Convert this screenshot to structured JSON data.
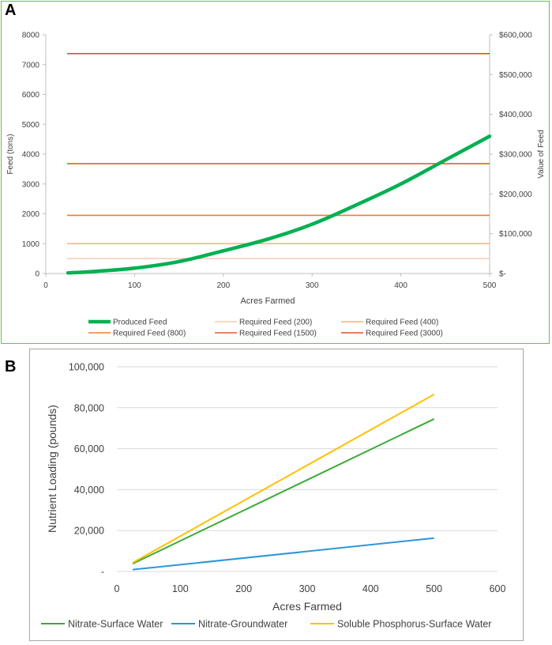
{
  "panels": {
    "a_label": "A",
    "b_label": "B"
  },
  "chart_data": [
    {
      "id": "A",
      "type": "line",
      "xlabel": "Acres Farmed",
      "ylabel": "Feed (tons)",
      "y2label": "Value of Feed",
      "xlim": [
        0,
        500
      ],
      "ylim": [
        0,
        8000
      ],
      "y2lim": [
        0,
        600000
      ],
      "x_ticks": [
        "0",
        "100",
        "200",
        "300",
        "400",
        "500"
      ],
      "y_ticks": [
        "0",
        "1000",
        "2000",
        "3000",
        "4000",
        "5000",
        "6000",
        "7000",
        "8000"
      ],
      "y2_ticks": [
        "$-",
        "$100,000",
        "$200,000",
        "$300,000",
        "$400,000",
        "$500,000",
        "$600,000"
      ],
      "grid": false,
      "legend_position": "bottom",
      "series": [
        {
          "name": "Produced Feed",
          "color": "#00b050",
          "x": [
            25,
            50,
            100,
            150,
            200,
            250,
            300,
            350,
            400,
            450,
            500
          ],
          "values": [
            20,
            60,
            180,
            400,
            760,
            1150,
            1650,
            2300,
            3000,
            3800,
            4600
          ]
        },
        {
          "name": "Required Feed (200)",
          "color": "#f8cbad",
          "value": 500
        },
        {
          "name": "Required Feed (400)",
          "color": "#f4b183",
          "value": 1000
        },
        {
          "name": "Required Feed (800)",
          "color": "#ed7d31",
          "value": 1950
        },
        {
          "name": "Required Feed (1500)",
          "color": "#e2601f",
          "value": 3680
        },
        {
          "name": "Required Feed (3000)",
          "color": "#d6561a",
          "value": 7370
        }
      ]
    },
    {
      "id": "B",
      "type": "line",
      "xlabel": "Acres Farmed",
      "ylabel": "Nutrient Loading (pounds)",
      "xlim": [
        0,
        600
      ],
      "ylim": [
        0,
        100000
      ],
      "x_ticks": [
        "0",
        "100",
        "200",
        "300",
        "400",
        "500",
        "600"
      ],
      "y_ticks": [
        "-",
        "20,000",
        "40,000",
        "60,000",
        "80,000",
        "100,000"
      ],
      "grid": true,
      "legend_position": "bottom",
      "series": [
        {
          "name": "Nitrate-Surface Water",
          "color": "#3aaa35",
          "x": [
            25,
            500
          ],
          "values": [
            3800,
            74500
          ]
        },
        {
          "name": "Nitrate-Groundwater",
          "color": "#2e96d6",
          "x": [
            25,
            500
          ],
          "values": [
            900,
            16300
          ]
        },
        {
          "name": "Soluble Phosphorus-Surface Water",
          "color": "#ffc000",
          "x": [
            25,
            500
          ],
          "values": [
            4300,
            86500
          ]
        }
      ]
    }
  ]
}
